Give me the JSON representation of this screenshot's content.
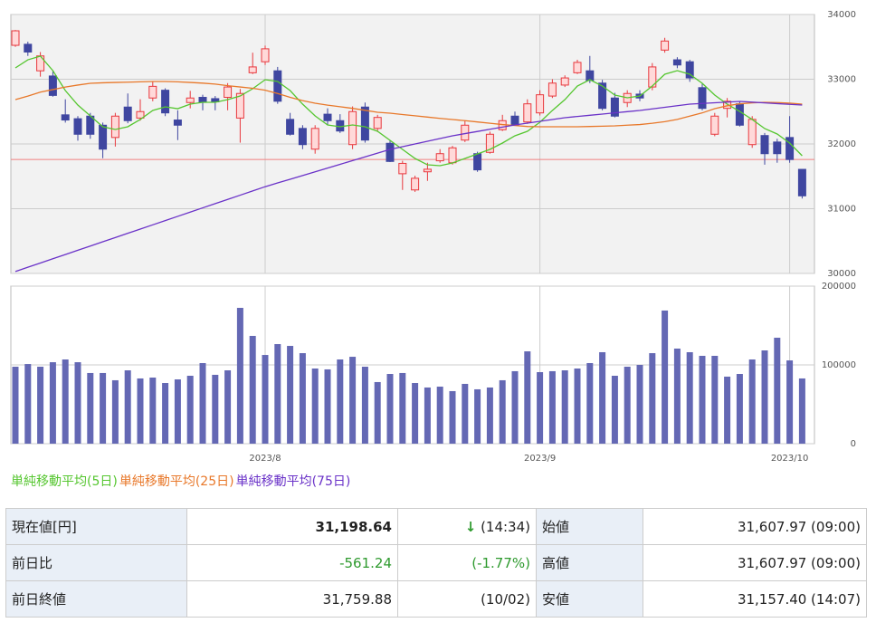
{
  "chart_data": [
    {
      "type": "candlestick",
      "open": [
        33524,
        33540,
        33130,
        33050,
        32450,
        32390,
        32430,
        32290,
        32100,
        32570,
        32400,
        32710,
        32830,
        32370,
        32640,
        32720,
        32700,
        32720,
        32400,
        33100,
        33270,
        33130,
        32380,
        32240,
        31920,
        32460,
        32360,
        31990,
        32570,
        32240,
        32010,
        31540,
        31290,
        31570,
        31740,
        31710,
        32060,
        31850,
        31870,
        32220,
        32430,
        32340,
        32480,
        32740,
        32910,
        33100,
        33130,
        32940,
        32710,
        32640,
        32770,
        32880,
        33450,
        33300,
        33270,
        32870,
        32150,
        32550,
        32620,
        31990,
        32130,
        32030,
        32100,
        31607.97
      ],
      "high": [
        33760,
        33580,
        33420,
        33120,
        32690,
        32430,
        32480,
        32330,
        32480,
        32780,
        32690,
        32960,
        32860,
        32520,
        32820,
        32760,
        32740,
        32940,
        32850,
        33410,
        33520,
        33190,
        32480,
        32290,
        32290,
        32550,
        32460,
        32580,
        32640,
        32450,
        32050,
        31740,
        31510,
        31710,
        31920,
        31970,
        32360,
        31880,
        32190,
        32450,
        32500,
        32690,
        32830,
        33000,
        33060,
        33300,
        33360,
        32990,
        32790,
        32830,
        32830,
        33250,
        33640,
        33340,
        33300,
        32940,
        32480,
        32710,
        32660,
        32430,
        32170,
        32080,
        32430,
        31607.97
      ],
      "low": [
        33500,
        33360,
        33040,
        32730,
        32330,
        32050,
        32080,
        31780,
        31960,
        32320,
        32360,
        32660,
        32430,
        32060,
        32550,
        32520,
        32520,
        32520,
        32020,
        33080,
        33220,
        32620,
        32130,
        31920,
        31850,
        32290,
        32170,
        31920,
        32020,
        32200,
        31720,
        31290,
        31260,
        31430,
        31710,
        31680,
        32030,
        31570,
        31850,
        32200,
        32290,
        32310,
        32440,
        32710,
        32880,
        33080,
        32940,
        32520,
        32410,
        32570,
        32660,
        32830,
        33410,
        33170,
        32960,
        32520,
        32120,
        32410,
        32270,
        31940,
        31680,
        31710,
        31710,
        31157.4
      ],
      "close": [
        33748,
        33420,
        33360,
        32750,
        32370,
        32150,
        32150,
        31920,
        32430,
        32360,
        32500,
        32890,
        32480,
        32290,
        32710,
        32650,
        32650,
        32880,
        32780,
        33190,
        33470,
        32660,
        32150,
        31990,
        32240,
        32360,
        32200,
        32500,
        32060,
        32410,
        31730,
        31700,
        31470,
        31610,
        31850,
        31940,
        32290,
        31600,
        32150,
        32360,
        32290,
        32620,
        32760,
        32940,
        33020,
        33260,
        32980,
        32550,
        32430,
        32780,
        32710,
        33190,
        33590,
        33220,
        33020,
        32550,
        32430,
        32660,
        32290,
        32380,
        31850,
        31850,
        31759.88,
        31198.64
      ],
      "up_color": "#e8383d",
      "down_color": "#3f46a0",
      "series": [
        {
          "name": "単純移動平均(5日)",
          "color": "#55c62f",
          "values": [
            33175,
            33300,
            33357,
            33133,
            32825,
            32601,
            32434,
            32266,
            32224,
            32266,
            32378,
            32518,
            32573,
            32545,
            32615,
            32643,
            32643,
            32685,
            32741,
            32853,
            32993,
            32965,
            32825,
            32615,
            32434,
            32294,
            32266,
            32294,
            32266,
            32196,
            32056,
            31916,
            31776,
            31678,
            31664,
            31706,
            31776,
            31846,
            31916,
            32014,
            32126,
            32196,
            32336,
            32518,
            32685,
            32895,
            32993,
            32895,
            32755,
            32713,
            32741,
            32895,
            33077,
            33133,
            33077,
            32937,
            32755,
            32615,
            32503,
            32378,
            32238,
            32154,
            32014,
            31818
          ]
        },
        {
          "name": "単純移動平均(25日)",
          "color": "#e8782a",
          "values": [
            32685,
            32740,
            32800,
            32840,
            32880,
            32910,
            32937,
            32945,
            32950,
            32955,
            32960,
            32965,
            32965,
            32960,
            32950,
            32940,
            32925,
            32900,
            32880,
            32860,
            32830,
            32780,
            32720,
            32670,
            32630,
            32600,
            32575,
            32550,
            32520,
            32490,
            32475,
            32455,
            32435,
            32415,
            32395,
            32378,
            32360,
            32340,
            32320,
            32300,
            32285,
            32270,
            32266,
            32266,
            32266,
            32266,
            32270,
            32275,
            32280,
            32290,
            32300,
            32320,
            32345,
            32380,
            32430,
            32480,
            32545,
            32590,
            32620,
            32635,
            32643,
            32640,
            32630,
            32615
          ]
        },
        {
          "name": "単純移動平均(75日)",
          "color": "#6a32c8",
          "values": [
            30030,
            30096,
            30161,
            30227,
            30292,
            30358,
            30423,
            30489,
            30554,
            30620,
            30685,
            30751,
            30816,
            30882,
            30947,
            31013,
            31078,
            31144,
            31209,
            31275,
            31340,
            31398,
            31455,
            31513,
            31570,
            31628,
            31686,
            31743,
            31801,
            31858,
            31916,
            31958,
            32000,
            32042,
            32084,
            32126,
            32160,
            32193,
            32227,
            32260,
            32294,
            32322,
            32350,
            32378,
            32406,
            32425,
            32443,
            32462,
            32481,
            32499,
            32518,
            32542,
            32567,
            32591,
            32615,
            32626,
            32636,
            32647,
            32657,
            32646,
            32635,
            32623,
            32612,
            32601
          ]
        }
      ],
      "reference_line": 31759.88,
      "reference_color": "#f08080",
      "ylim": [
        30000,
        34000
      ],
      "yticks": [
        30000,
        31000,
        32000,
        33000,
        34000
      ],
      "grid": true
    },
    {
      "type": "bar",
      "color": "#6468b4",
      "categories": [
        null,
        null,
        null,
        null,
        null,
        null,
        null,
        null,
        null,
        null,
        null,
        null,
        null,
        null,
        null,
        null,
        null,
        null,
        null,
        null,
        "2023/8",
        null,
        null,
        null,
        null,
        null,
        null,
        null,
        null,
        null,
        null,
        null,
        null,
        null,
        null,
        null,
        null,
        null,
        null,
        null,
        null,
        null,
        "2023/9",
        null,
        null,
        null,
        null,
        null,
        null,
        null,
        null,
        null,
        null,
        null,
        null,
        null,
        null,
        null,
        null,
        null,
        null,
        null,
        "2023/10",
        null
      ],
      "values": [
        97700,
        101100,
        97700,
        103400,
        106900,
        103400,
        89700,
        89700,
        80500,
        93100,
        82800,
        83900,
        77000,
        81600,
        86200,
        102300,
        87400,
        93100,
        172400,
        136800,
        112600,
        126400,
        124100,
        114900,
        95400,
        94300,
        106900,
        110300,
        97700,
        78200,
        88500,
        89700,
        77000,
        71300,
        72400,
        66700,
        75900,
        69000,
        71300,
        80500,
        92000,
        117200,
        90800,
        92000,
        93100,
        95400,
        102300,
        116100,
        86200,
        97700,
        100000,
        114900,
        169000,
        120700,
        116100,
        111500,
        111500,
        85100,
        88500,
        106900,
        118400,
        134500,
        105700,
        82800
      ],
      "ylim": [
        0,
        200000
      ],
      "yticks": [
        0,
        100000,
        200000
      ],
      "grid": true
    }
  ],
  "table": {
    "rows": [
      {
        "label": "現在値[円]",
        "value": "31,198.64",
        "arrow": "↓",
        "note": "(14:34)",
        "label2": "始値",
        "value2": "31,607.97 (09:00)"
      },
      {
        "label": "前日比",
        "value": "-561.24",
        "note": "(-1.77%)",
        "label2": "高値",
        "value2": "31,607.97 (09:00)"
      },
      {
        "label": "前日終値",
        "value": "31,759.88",
        "note": "(10/02)",
        "label2": "安値",
        "value2": "31,157.40 (14:07)"
      }
    ]
  }
}
